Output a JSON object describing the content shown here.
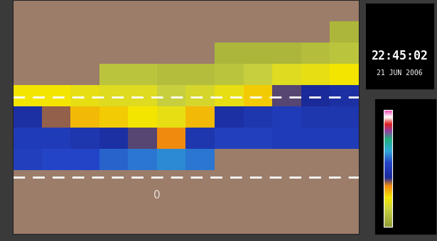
{
  "chart_data": {
    "type": "heatmap",
    "xlim": [
      0,
      12
    ],
    "ylim": [
      0,
      11
    ],
    "tick_labels": false,
    "grid": false,
    "cells": [
      [
        null,
        null,
        null,
        null,
        null,
        null,
        null,
        null,
        null,
        null,
        null,
        null
      ],
      [
        null,
        null,
        null,
        null,
        null,
        null,
        null,
        null,
        null,
        null,
        null,
        8
      ],
      [
        null,
        null,
        null,
        null,
        null,
        null,
        null,
        8,
        8,
        8,
        10,
        12
      ],
      [
        null,
        null,
        null,
        12,
        12,
        10,
        10,
        12,
        15,
        20,
        22,
        25
      ],
      [
        25,
        25,
        22,
        20,
        20,
        15,
        18,
        22,
        28,
        40,
        42,
        45
      ],
      [
        45,
        38,
        30,
        28,
        25,
        22,
        30,
        45,
        48,
        50,
        48,
        48
      ],
      [
        50,
        50,
        48,
        45,
        40,
        35,
        48,
        52,
        52,
        50,
        50,
        50
      ],
      [
        52,
        55,
        55,
        58,
        60,
        62,
        60,
        null,
        null,
        null,
        null,
        null
      ],
      [
        null,
        null,
        null,
        null,
        null,
        null,
        null,
        null,
        null,
        null,
        null,
        null
      ],
      [
        null,
        null,
        null,
        null,
        null,
        null,
        null,
        null,
        null,
        null,
        null,
        null
      ],
      [
        null,
        null,
        null,
        null,
        null,
        null,
        null,
        null,
        null,
        null,
        null,
        null
      ]
    ],
    "colorbar": {
      "range": [
        0,
        100
      ]
    },
    "hlines": [
      6.43,
      2.67
    ],
    "annotations": [
      "0"
    ],
    "timestamp": "22:45:02",
    "date": "21 JUN 2006"
  }
}
